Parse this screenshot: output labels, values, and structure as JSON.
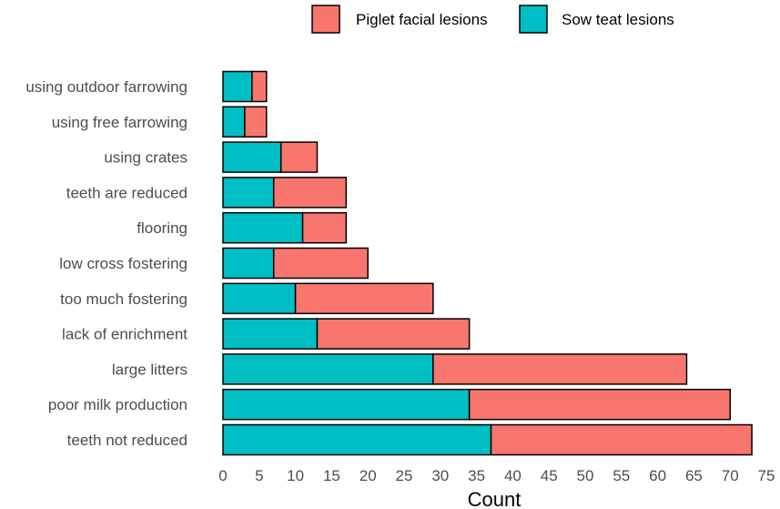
{
  "chart_data": {
    "type": "bar",
    "orientation": "horizontal",
    "stacked": true,
    "title": "",
    "xlabel": "Count",
    "ylabel": "",
    "xlim": [
      0,
      75
    ],
    "xticks": [
      0,
      5,
      10,
      15,
      20,
      25,
      30,
      35,
      40,
      45,
      50,
      55,
      60,
      65,
      70,
      75
    ],
    "categories": [
      "using outdoor farrowing",
      "using free farrowing",
      "using crates",
      "teeth are reduced",
      "flooring",
      "low cross fostering",
      "too much fostering",
      "lack of enrichment",
      "large litters",
      "poor milk production",
      "teeth not reduced"
    ],
    "series": [
      {
        "name": "Sow teat lesions",
        "color": "#00BFC4",
        "values": [
          4,
          3,
          8,
          7,
          11,
          7,
          10,
          13,
          29,
          34,
          37
        ]
      },
      {
        "name": "Piglet facial lesions",
        "color": "#F8766D",
        "values": [
          2,
          3,
          5,
          10,
          6,
          13,
          19,
          21,
          35,
          36,
          36
        ]
      }
    ],
    "legend": {
      "position": "top",
      "entries": [
        {
          "label": "Piglet facial lesions",
          "color": "#F8766D"
        },
        {
          "label": "Sow teat lesions",
          "color": "#00BFC4"
        }
      ]
    },
    "grid": false
  }
}
